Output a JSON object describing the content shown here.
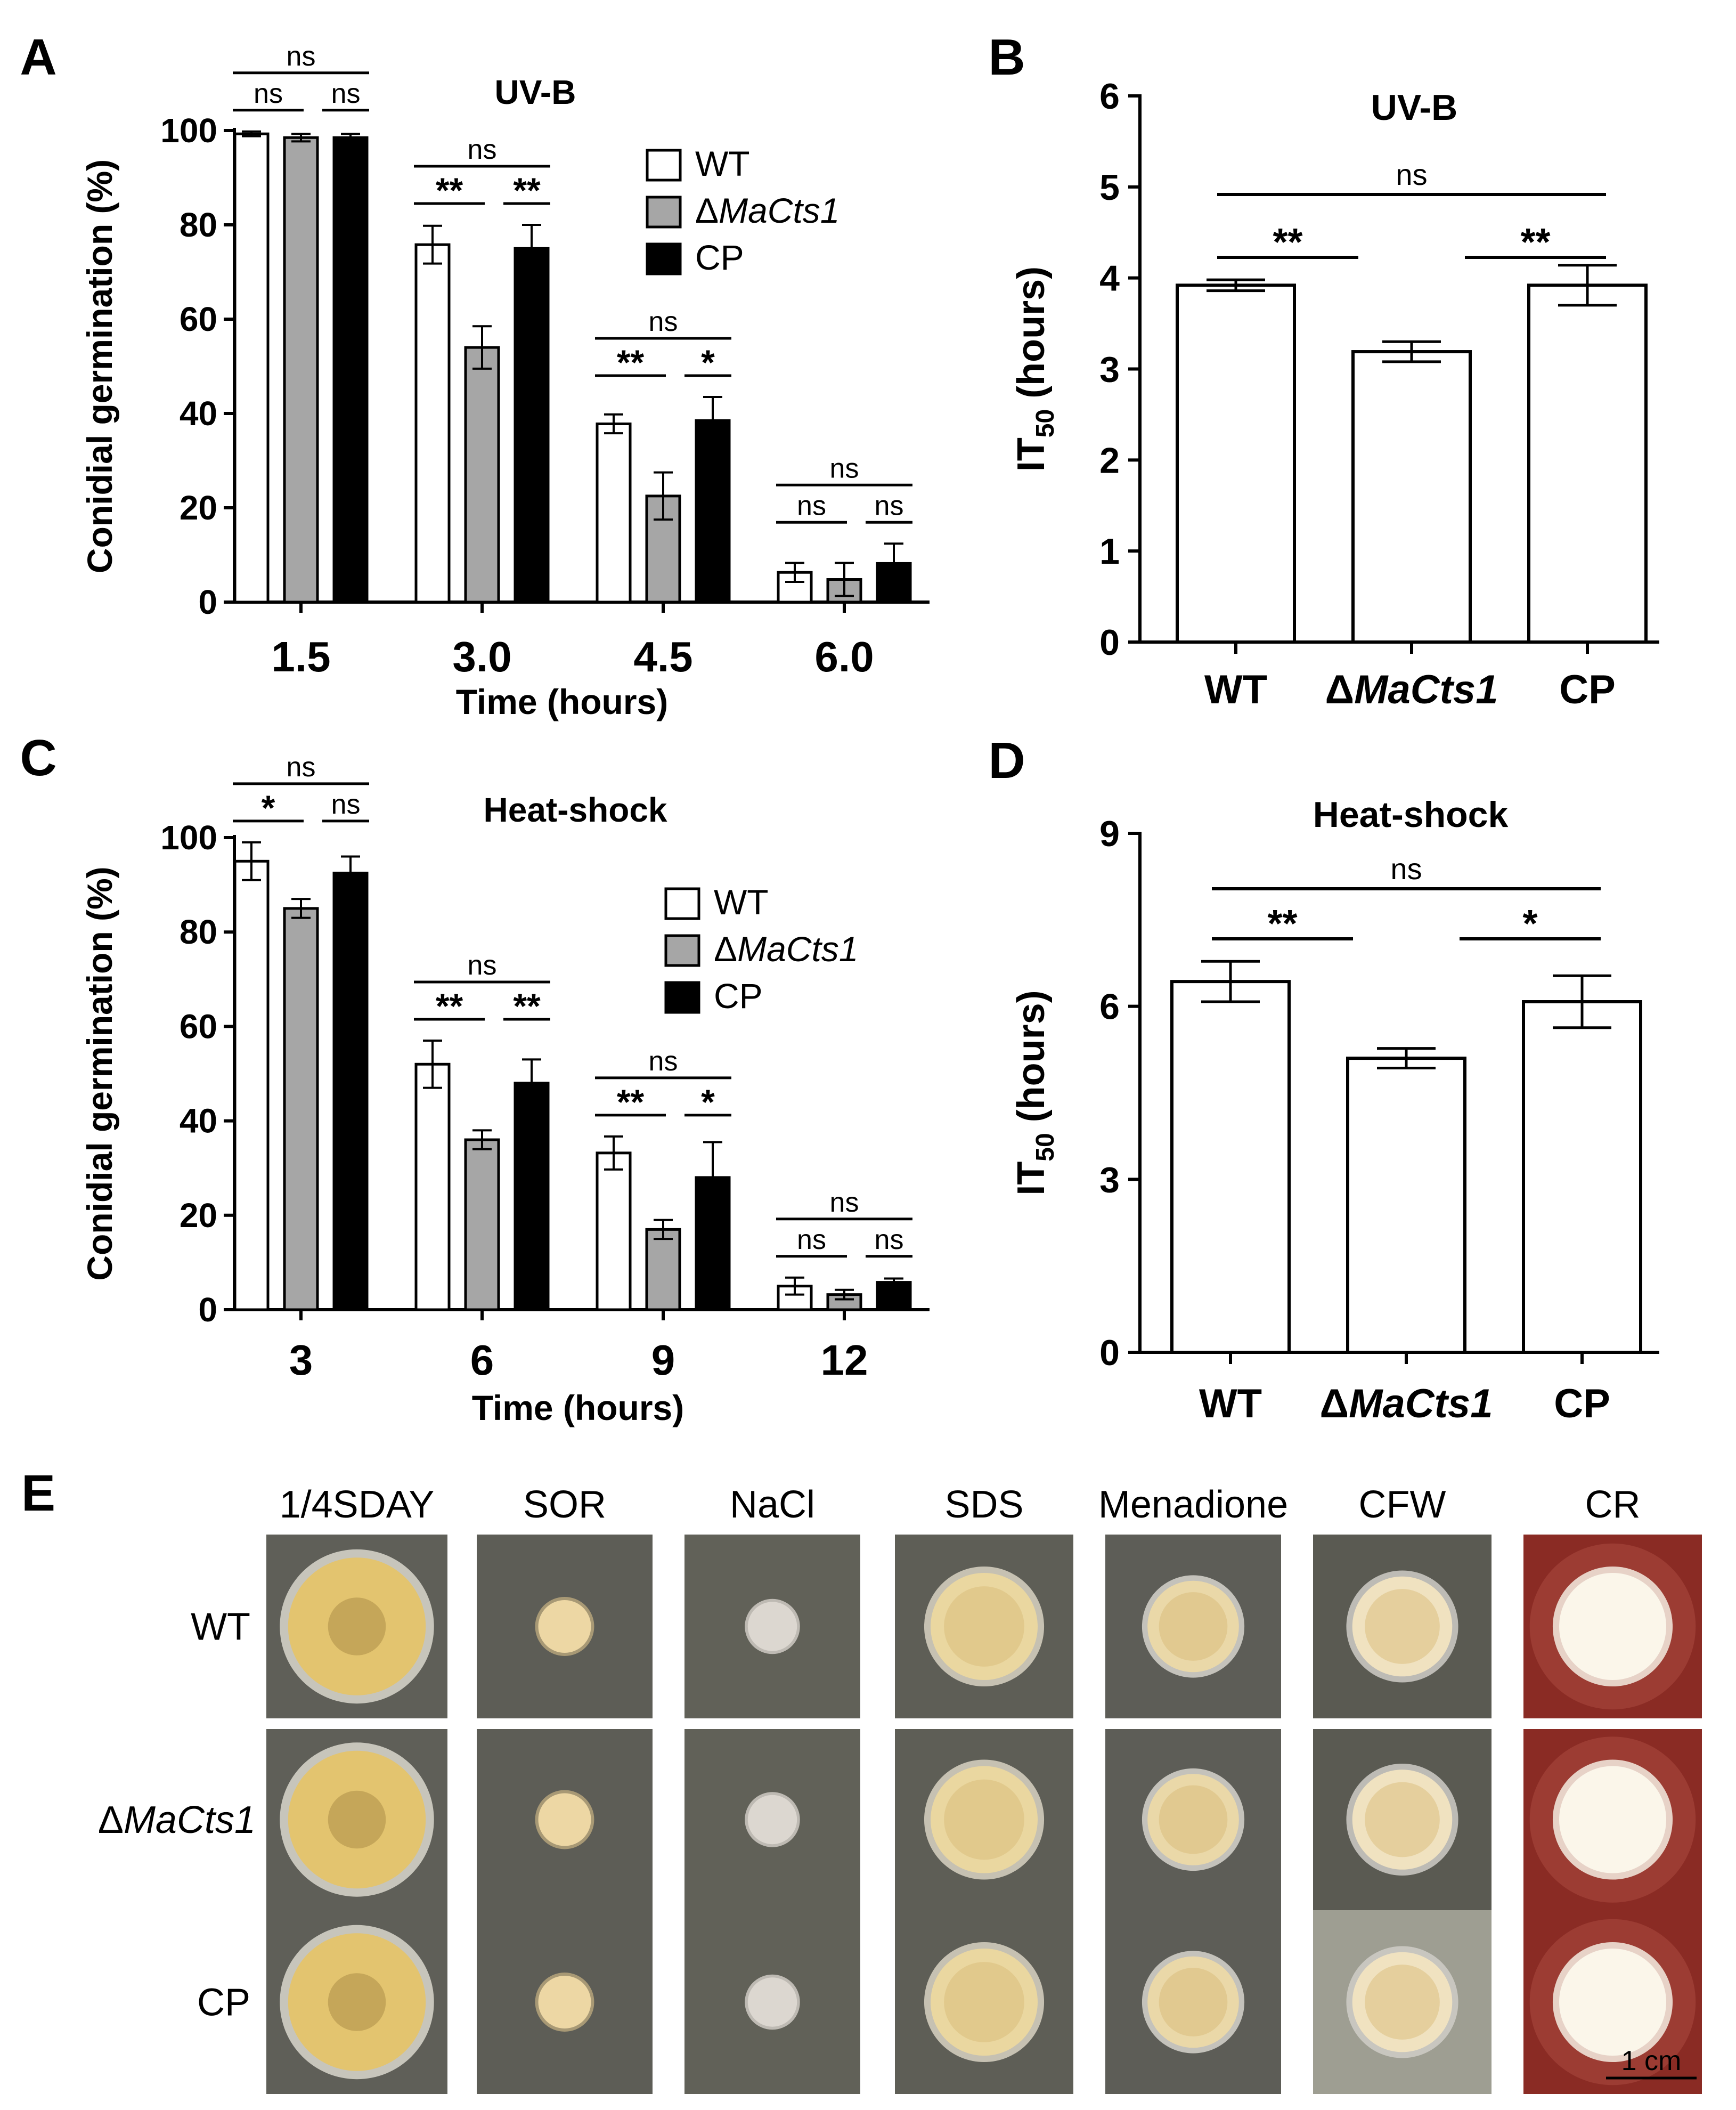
{
  "colors": {
    "wt": "#ffffff",
    "ko": "#a6a6a6",
    "cp": "#000000",
    "axis": "#000000"
  },
  "chart_data": [
    {
      "id": "A",
      "panel_label": "A",
      "type": "bar",
      "title": "UV-B",
      "xlabel": "Time (hours)",
      "ylabel": "Conidial germination (%)",
      "ylim": [
        0,
        100
      ],
      "yticks": [
        "0",
        "20",
        "40",
        "60",
        "80",
        "100"
      ],
      "categories": [
        "1.5",
        "3.0",
        "4.5",
        "6.0"
      ],
      "legend": [
        "WT",
        "ΔMaCts1",
        "CP"
      ],
      "series": [
        {
          "name": "WT",
          "values": [
            99.3,
            75.8,
            37.8,
            6.3
          ],
          "errors": [
            0.5,
            4.0,
            2.0,
            2.0
          ]
        },
        {
          "name": "ΔMaCts1",
          "values": [
            98.5,
            54.0,
            22.5,
            4.8
          ],
          "errors": [
            0.8,
            4.5,
            5.0,
            3.5
          ]
        },
        {
          "name": "CP",
          "values": [
            98.5,
            75.0,
            38.5,
            8.2
          ],
          "errors": [
            0.8,
            5.0,
            5.0,
            4.2
          ]
        }
      ],
      "significance": [
        {
          "group": 0,
          "pair": "WT-CP",
          "mark": "ns"
        },
        {
          "group": 0,
          "pair": "WT-KO",
          "mark": "ns"
        },
        {
          "group": 0,
          "pair": "KO-CP",
          "mark": "ns"
        },
        {
          "group": 1,
          "pair": "WT-CP",
          "mark": "ns"
        },
        {
          "group": 1,
          "pair": "WT-KO",
          "mark": "**"
        },
        {
          "group": 1,
          "pair": "KO-CP",
          "mark": "**"
        },
        {
          "group": 2,
          "pair": "WT-CP",
          "mark": "ns"
        },
        {
          "group": 2,
          "pair": "WT-KO",
          "mark": "**"
        },
        {
          "group": 2,
          "pair": "KO-CP",
          "mark": "*"
        },
        {
          "group": 3,
          "pair": "WT-CP",
          "mark": "ns"
        },
        {
          "group": 3,
          "pair": "WT-KO",
          "mark": "ns"
        },
        {
          "group": 3,
          "pair": "KO-CP",
          "mark": "ns"
        }
      ]
    },
    {
      "id": "B",
      "panel_label": "B",
      "type": "bar",
      "title": "UV-B",
      "ylabel_main": "IT",
      "ylabel_sub": "50",
      "ylabel_tail": " (hours)",
      "ylim": [
        0,
        6
      ],
      "yticks": [
        "0",
        "1",
        "2",
        "3",
        "4",
        "5",
        "6"
      ],
      "categories": [
        "WT",
        "ΔMaCts1",
        "CP"
      ],
      "values": [
        3.92,
        3.19,
        3.92
      ],
      "errors": [
        0.06,
        0.11,
        0.22
      ],
      "significance": [
        {
          "pair": "WT-CP",
          "mark": "ns"
        },
        {
          "pair": "WT-KO",
          "mark": "**"
        },
        {
          "pair": "KO-CP",
          "mark": "**"
        }
      ]
    },
    {
      "id": "C",
      "panel_label": "C",
      "type": "bar",
      "title": "Heat-shock",
      "xlabel": "Time (hours)",
      "ylabel": "Conidial germination (%)",
      "ylim": [
        0,
        100
      ],
      "yticks": [
        "0",
        "20",
        "40",
        "60",
        "80",
        "100"
      ],
      "categories": [
        "3",
        "6",
        "9",
        "12"
      ],
      "legend": [
        "WT",
        "ΔMaCts1",
        "CP"
      ],
      "series": [
        {
          "name": "WT",
          "values": [
            95.0,
            52.0,
            33.2,
            5.0
          ],
          "errors": [
            4.0,
            5.0,
            3.5,
            1.8
          ]
        },
        {
          "name": "ΔMaCts1",
          "values": [
            85.0,
            36.0,
            17.0,
            3.2
          ],
          "errors": [
            2.0,
            2.0,
            2.0,
            1.0
          ]
        },
        {
          "name": "CP",
          "values": [
            92.5,
            48.0,
            28.0,
            5.8
          ],
          "errors": [
            3.5,
            5.0,
            7.5,
            0.8
          ]
        }
      ],
      "significance": [
        {
          "group": 0,
          "pair": "WT-CP",
          "mark": "ns"
        },
        {
          "group": 0,
          "pair": "WT-KO",
          "mark": "*"
        },
        {
          "group": 0,
          "pair": "KO-CP",
          "mark": "ns"
        },
        {
          "group": 1,
          "pair": "WT-CP",
          "mark": "ns"
        },
        {
          "group": 1,
          "pair": "WT-KO",
          "mark": "**"
        },
        {
          "group": 1,
          "pair": "KO-CP",
          "mark": "**"
        },
        {
          "group": 2,
          "pair": "WT-CP",
          "mark": "ns"
        },
        {
          "group": 2,
          "pair": "WT-KO",
          "mark": "**"
        },
        {
          "group": 2,
          "pair": "KO-CP",
          "mark": "*"
        },
        {
          "group": 3,
          "pair": "WT-CP",
          "mark": "ns"
        },
        {
          "group": 3,
          "pair": "WT-KO",
          "mark": "ns"
        },
        {
          "group": 3,
          "pair": "KO-CP",
          "mark": "ns"
        }
      ]
    },
    {
      "id": "D",
      "panel_label": "D",
      "type": "bar",
      "title": "Heat-shock",
      "ylabel_main": "IT",
      "ylabel_sub": "50",
      "ylabel_tail": " (hours)",
      "ylim": [
        0,
        9
      ],
      "yticks": [
        "0",
        "3",
        "6",
        "9"
      ],
      "categories": [
        "WT",
        "ΔMaCts1",
        "CP"
      ],
      "values": [
        6.43,
        5.1,
        6.08
      ],
      "errors": [
        0.35,
        0.17,
        0.45
      ],
      "significance": [
        {
          "pair": "WT-CP",
          "mark": "ns"
        },
        {
          "pair": "WT-KO",
          "mark": "**"
        },
        {
          "pair": "KO-CP",
          "mark": "*"
        }
      ]
    }
  ],
  "panel_e": {
    "label": "E",
    "columns": [
      "1/4SDAY",
      "SOR",
      "NaCl",
      "SDS",
      "Menadione",
      "CFW",
      "CR"
    ],
    "rows": [
      "WT",
      "ΔMaCts1",
      "CP"
    ],
    "scale_bar": "1 cm"
  }
}
